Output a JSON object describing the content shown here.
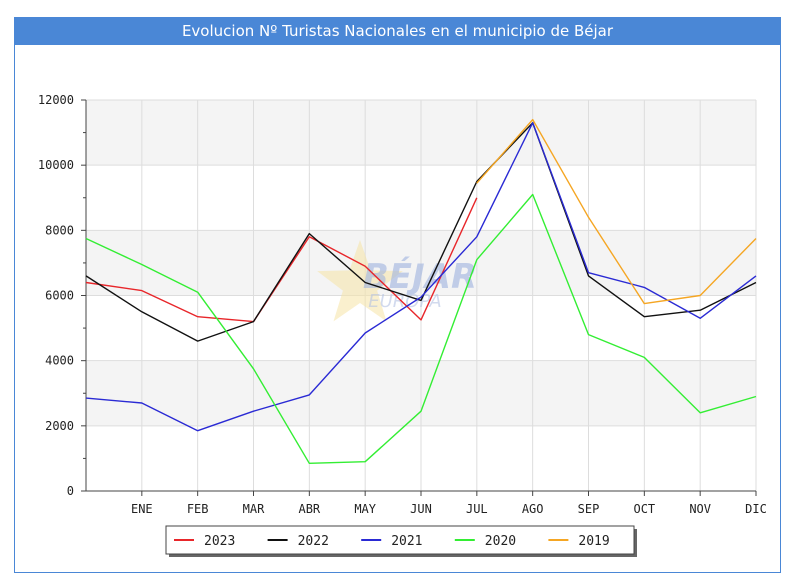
{
  "chart_data": {
    "type": "line",
    "title": "Evolucion Nº Turistas Nacionales en el municipio de Béjar",
    "xlabel": "",
    "ylabel": "",
    "categories": [
      "",
      "ENE",
      "FEB",
      "MAR",
      "ABR",
      "MAY",
      "JUN",
      "JUL",
      "AGO",
      "SEP",
      "OCT",
      "NOV",
      "DIC"
    ],
    "x_tick_labels": [
      "ENE",
      "FEB",
      "MAR",
      "ABR",
      "MAY",
      "JUN",
      "JUL",
      "AGO",
      "SEP",
      "OCT",
      "NOV",
      "DIC"
    ],
    "y_tick_labels": [
      "0",
      "2000",
      "4000",
      "6000",
      "8000",
      "10000",
      "12000"
    ],
    "ylim": [
      0,
      12000
    ],
    "grid": true,
    "legend_placement": "bottom-center",
    "watermark": "BÉJAR EUROPA",
    "series": [
      {
        "name": "2023",
        "color": "#e8262a",
        "values": [
          6400,
          6150,
          5350,
          5200,
          7800,
          6900,
          5250,
          9000,
          null,
          null,
          null,
          null,
          null
        ]
      },
      {
        "name": "2022",
        "color": "#111111",
        "values": [
          6600,
          5500,
          4600,
          5200,
          7900,
          6400,
          5850,
          9500,
          11300,
          6600,
          5350,
          5550,
          6400
        ]
      },
      {
        "name": "2021",
        "color": "#2a2ad4",
        "values": [
          2850,
          2700,
          1850,
          2450,
          2950,
          4850,
          5950,
          7800,
          11300,
          6700,
          6250,
          5300,
          6600
        ]
      },
      {
        "name": "2020",
        "color": "#33ee33",
        "values": [
          7750,
          6950,
          6100,
          3750,
          850,
          900,
          2450,
          7100,
          9100,
          4800,
          4100,
          2400,
          2900
        ]
      },
      {
        "name": "2019",
        "color": "#f5a623",
        "values": [
          null,
          null,
          null,
          null,
          null,
          null,
          null,
          9450,
          11400,
          8400,
          5750,
          6000,
          7750
        ]
      }
    ]
  }
}
